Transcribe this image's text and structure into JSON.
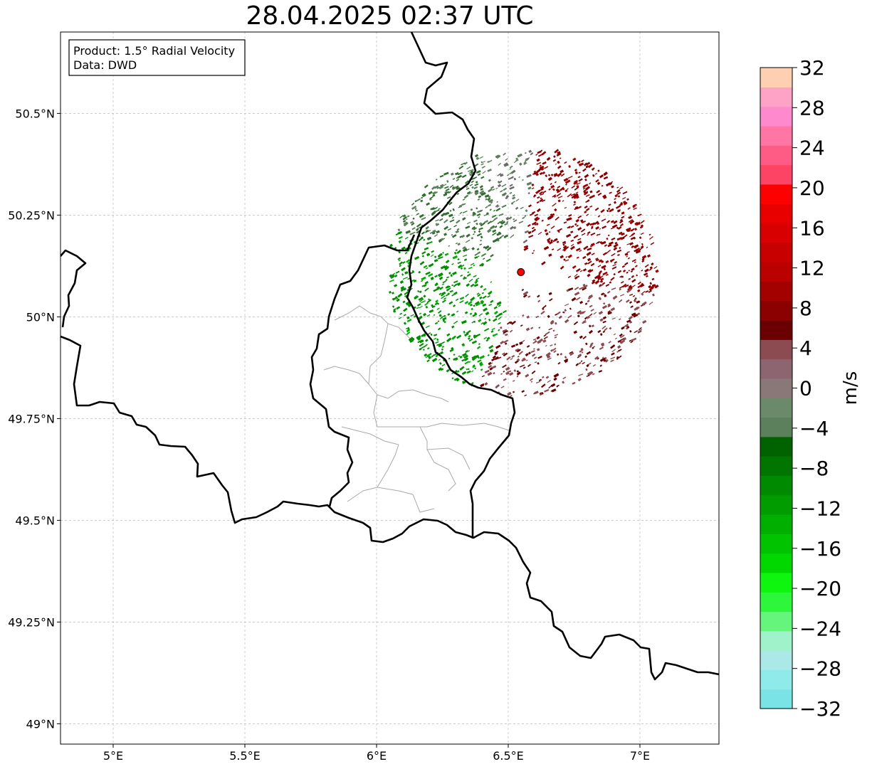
{
  "title": "28.04.2025 02:37 UTC",
  "info_box": {
    "product": "Product: 1.5° Radial Velocity",
    "data": "Data: DWD"
  },
  "map": {
    "lon_range": [
      4.8,
      7.3
    ],
    "lat_range": [
      48.95,
      50.7
    ],
    "lon_ticks": [
      {
        "value": 5.0,
        "label": "5°E"
      },
      {
        "value": 5.5,
        "label": "5.5°E"
      },
      {
        "value": 6.0,
        "label": "6°E"
      },
      {
        "value": 6.5,
        "label": "6.5°E"
      },
      {
        "value": 7.0,
        "label": "7°E"
      }
    ],
    "lat_ticks": [
      {
        "value": 49.0,
        "label": "49°N"
      },
      {
        "value": 49.25,
        "label": "49.25°N"
      },
      {
        "value": 49.5,
        "label": "49.5°N"
      },
      {
        "value": 49.75,
        "label": "49.75°N"
      },
      {
        "value": 50.0,
        "label": "50°N"
      },
      {
        "value": 50.25,
        "label": "50.25°N"
      },
      {
        "value": 50.5,
        "label": "50.5°N"
      }
    ],
    "grid": true,
    "radar_site": {
      "lon": 6.548,
      "lat": 50.11,
      "color": "#ff0000"
    }
  },
  "colorbar": {
    "label": "m/s",
    "min": -32,
    "max": 32,
    "ticks": [
      -32,
      -28,
      -24,
      -20,
      -16,
      -12,
      -8,
      -4,
      0,
      4,
      8,
      12,
      16,
      20,
      24,
      28,
      32
    ],
    "tick_labels": [
      "−32",
      "−28",
      "−24",
      "−20",
      "−16",
      "−12",
      "−8",
      "−4",
      "0",
      "4",
      "8",
      "12",
      "16",
      "20",
      "24",
      "28",
      "32"
    ],
    "colors": [
      "#7ae3e6",
      "#8feaea",
      "#abe9e9",
      "#9ff2c9",
      "#66f57c",
      "#2cf73b",
      "#0ef50e",
      "#00d800",
      "#00c400",
      "#00b000",
      "#009c00",
      "#008a00",
      "#007500",
      "#006300",
      "#5c7f5c",
      "#6a8a6a",
      "#8a7777",
      "#8c6570",
      "#8c4b51",
      "#6b0000",
      "#8b0000",
      "#a30000",
      "#bb0000",
      "#c80000",
      "#d80000",
      "#e80000",
      "#ff0000",
      "#fe4465",
      "#ff5c85",
      "#ff75a3",
      "#ff89cd",
      "#ffa3c6",
      "#ffcfb1"
    ]
  }
}
